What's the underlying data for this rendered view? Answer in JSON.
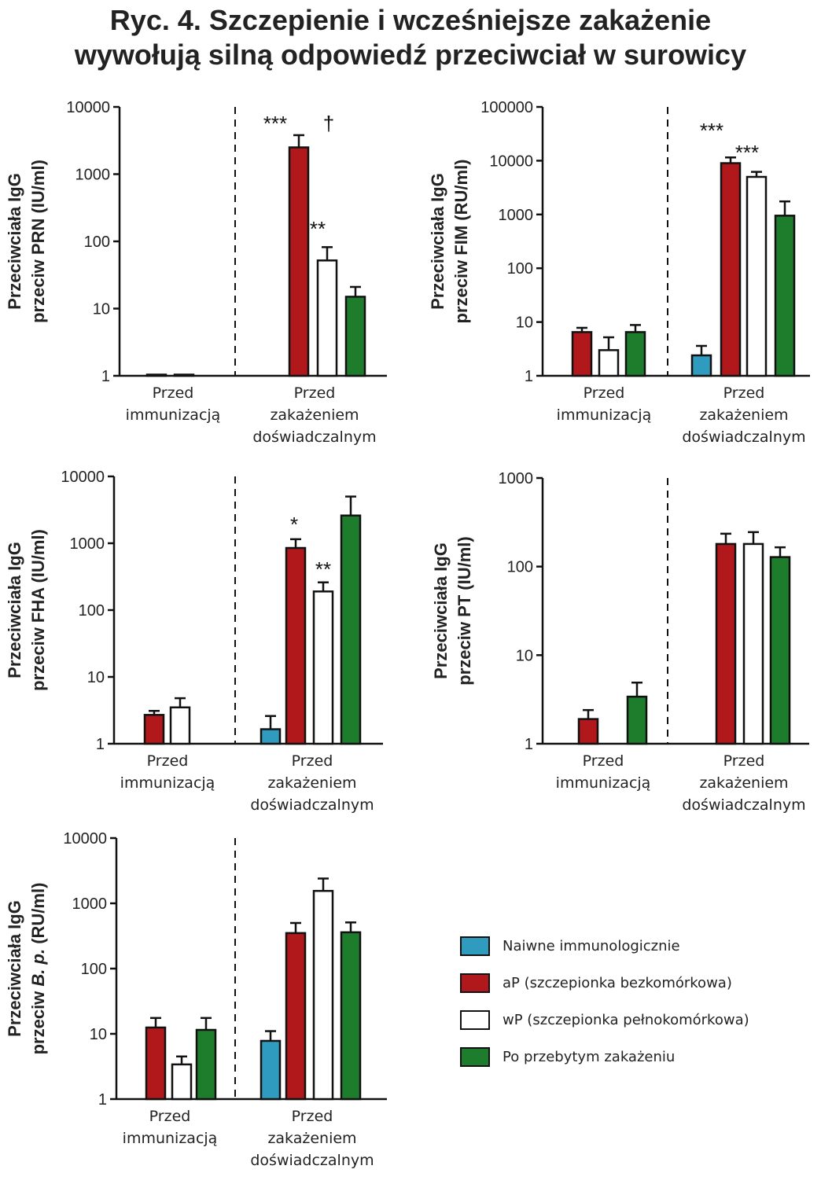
{
  "title": {
    "line1": "Ryc. 4. Szczepienie i wcześniejsze zakażenie",
    "line2": "wywołują silną odpowiedź przeciwciał w surowicy"
  },
  "colors": {
    "naive": "#2e9bbf",
    "ap": "#b0181c",
    "wp": "#ffffff",
    "infected": "#1d7d2c",
    "outline": "#111111"
  },
  "legend": [
    {
      "key": "naive",
      "label": "Naiwne immunologicznie"
    },
    {
      "key": "ap",
      "label": "aP (szczepionka bezkomórkowa)"
    },
    {
      "key": "wp",
      "label": "wP (szczepionka pełnokomórkowa)"
    },
    {
      "key": "infected",
      "label": "Po przebytym zakażeniu"
    }
  ],
  "chart_data": [
    {
      "type": "bar",
      "scale": "log",
      "ylabel_line1": "Przeciwciała IgG",
      "ylabel_line2": "przeciw PRN (IU/ml)",
      "ylim": [
        1,
        10000
      ],
      "yticks": [
        "1",
        "10",
        "100",
        "1000",
        "10000"
      ],
      "categories": [
        [
          "Przed",
          "immunizacją"
        ],
        [
          "Przed",
          "zakażeniem",
          "doświadczalnym"
        ]
      ],
      "series": [
        {
          "key": "naive",
          "values": [
            null,
            null
          ],
          "err": [
            null,
            null
          ]
        },
        {
          "key": "ap",
          "values": [
            1,
            2500
          ],
          "err": [
            null,
            3800
          ]
        },
        {
          "key": "wp",
          "values": [
            1,
            52
          ],
          "err": [
            null,
            82
          ]
        },
        {
          "key": "infected",
          "values": [
            null,
            15
          ],
          "err": [
            null,
            21
          ]
        }
      ],
      "annotations": [
        {
          "text": "***",
          "series": "ap",
          "cat": 1
        },
        {
          "text": "†",
          "series": "wp",
          "cat": 1
        },
        {
          "text": "**",
          "series": "wp",
          "cat": 1,
          "above": "err"
        }
      ]
    },
    {
      "type": "bar",
      "scale": "log",
      "ylabel_line1": "Przeciwciała IgG",
      "ylabel_line2": "przeciw FIM (RU/ml)",
      "ylim": [
        1,
        100000
      ],
      "yticks": [
        "1",
        "10",
        "100",
        "1000",
        "10000",
        "100000"
      ],
      "categories": [
        [
          "Przed",
          "immunizacją"
        ],
        [
          "Przed",
          "zakażeniem",
          "doświadczalnym"
        ]
      ],
      "series": [
        {
          "key": "naive",
          "values": [
            null,
            2.4
          ],
          "err": [
            null,
            3.6
          ]
        },
        {
          "key": "ap",
          "values": [
            6.5,
            9000
          ],
          "err": [
            7.8,
            11500
          ]
        },
        {
          "key": "wp",
          "values": [
            3.0,
            5000
          ],
          "err": [
            5.2,
            6200
          ]
        },
        {
          "key": "infected",
          "values": [
            6.5,
            950
          ],
          "err": [
            8.8,
            1750
          ]
        }
      ],
      "annotations": [
        {
          "text": "***",
          "series": "ap",
          "cat": 1
        },
        {
          "text": "***",
          "series": "wp",
          "cat": 1
        }
      ]
    },
    {
      "type": "bar",
      "scale": "log",
      "ylabel_line1": "Przeciwciała IgG",
      "ylabel_line2": "przeciw FHA (IU/ml)",
      "ylim": [
        1,
        10000
      ],
      "yticks": [
        "1",
        "10",
        "100",
        "1000",
        "10000"
      ],
      "categories": [
        [
          "Przed",
          "immunizacją"
        ],
        [
          "Przed",
          "zakażeniem",
          "doświadczalnym"
        ]
      ],
      "series": [
        {
          "key": "naive",
          "values": [
            null,
            1.65
          ],
          "err": [
            null,
            2.6
          ]
        },
        {
          "key": "ap",
          "values": [
            2.7,
            850
          ],
          "err": [
            3.1,
            1150
          ]
        },
        {
          "key": "wp",
          "values": [
            3.5,
            190
          ],
          "err": [
            4.8,
            260
          ]
        },
        {
          "key": "infected",
          "values": [
            null,
            2600
          ],
          "err": [
            null,
            5000
          ]
        }
      ],
      "annotations": [
        {
          "text": "*",
          "series": "ap",
          "cat": 1
        },
        {
          "text": "**",
          "series": "wp",
          "cat": 1
        }
      ]
    },
    {
      "type": "bar",
      "scale": "log",
      "ylabel_line1": "Przeciwciała IgG",
      "ylabel_line2": "przeciw PT (IU/ml)",
      "ylim": [
        1,
        1000
      ],
      "yticks": [
        "1",
        "10",
        "100",
        "1000"
      ],
      "categories": [
        [
          "Przed",
          "immunizacją"
        ],
        [
          "Przed",
          "zakażeniem",
          "doświadczalnym"
        ]
      ],
      "series": [
        {
          "key": "naive",
          "values": [
            null,
            null
          ],
          "err": [
            null,
            null
          ]
        },
        {
          "key": "ap",
          "values": [
            1.9,
            180
          ],
          "err": [
            2.4,
            235
          ]
        },
        {
          "key": "wp",
          "values": [
            null,
            180
          ],
          "err": [
            null,
            245
          ]
        },
        {
          "key": "infected",
          "values": [
            3.4,
            128
          ],
          "err": [
            4.9,
            165
          ]
        }
      ],
      "annotations": []
    },
    {
      "type": "bar",
      "scale": "log",
      "ylabel_line1": "Przeciwciała IgG",
      "ylabel_line2_pre": "przeciw ",
      "ylabel_line2_em": "B. p.",
      "ylabel_line2_post": " (RU/ml)",
      "ylim": [
        1,
        10000
      ],
      "yticks": [
        "1",
        "10",
        "100",
        "1000",
        "10000"
      ],
      "categories": [
        [
          "Przed",
          "immunizacją"
        ],
        [
          "Przed",
          "zakażeniem",
          "doświadczalnym"
        ]
      ],
      "series": [
        {
          "key": "naive",
          "values": [
            null,
            7.8
          ],
          "err": [
            null,
            11
          ]
        },
        {
          "key": "ap",
          "values": [
            12.5,
            350
          ],
          "err": [
            17.5,
            500
          ]
        },
        {
          "key": "wp",
          "values": [
            3.4,
            1550
          ],
          "err": [
            4.5,
            2400
          ]
        },
        {
          "key": "infected",
          "values": [
            11.5,
            360
          ],
          "err": [
            17.5,
            510
          ]
        }
      ],
      "annotations": []
    }
  ]
}
